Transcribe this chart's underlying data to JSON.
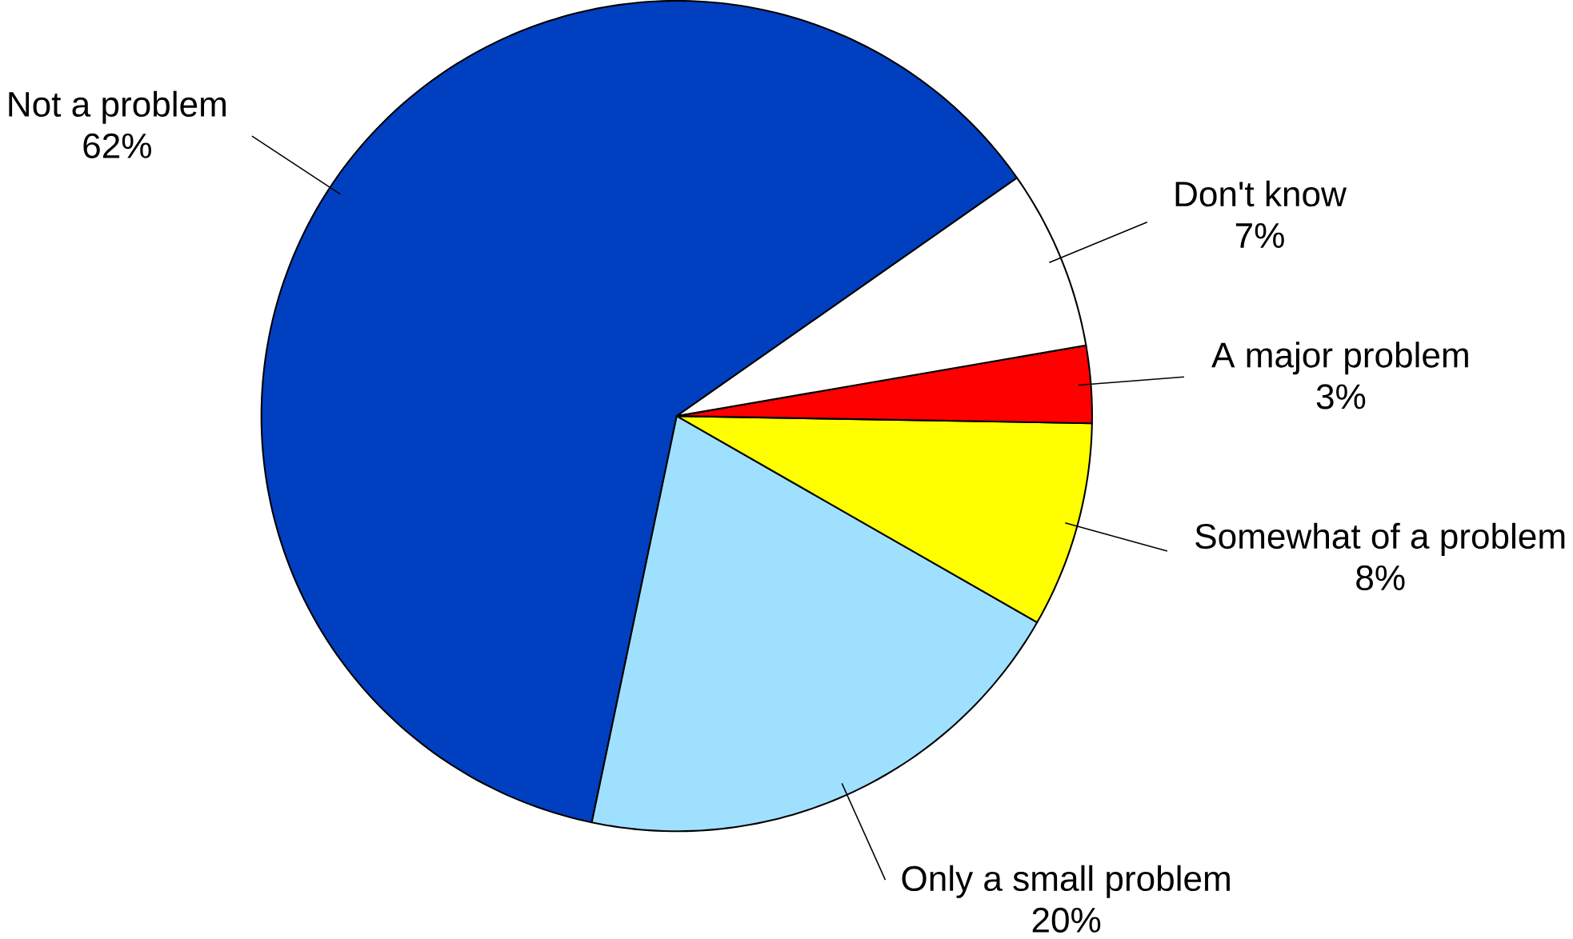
{
  "chart_data": {
    "type": "pie",
    "categories": [
      "Not a problem",
      "Only a small problem",
      "Somewhat of a problem",
      "A major problem",
      "Don't know"
    ],
    "values": [
      62,
      20,
      8,
      3,
      7
    ],
    "value_labels": [
      "62%",
      "20%",
      "8%",
      "3%",
      "7%"
    ],
    "colors": [
      "#0040c0",
      "#a0e0ff",
      "#ffff00",
      "#ff0000",
      "#ffffff"
    ]
  }
}
